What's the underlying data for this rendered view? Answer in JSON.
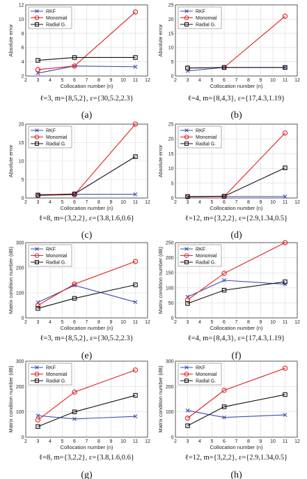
{
  "figure": {
    "colors": {
      "rkf": "#3a4bb0",
      "monomial": "#e02020",
      "radial": "#111111",
      "grid": "#d9d9d9",
      "axis": "#333333"
    }
  },
  "chart_data": [
    {
      "id": "a",
      "type": "line",
      "label": "(a)",
      "caption": "ℓ=3, m={8,5,2}, ε={30,5.2,2.3}",
      "xlabel": "Collocation number (n)",
      "ylabel": "Absolute error",
      "xlim": [
        2,
        12
      ],
      "ylim": [
        2,
        12
      ],
      "xticks": [
        2,
        3,
        4,
        5,
        6,
        7,
        8,
        9,
        10,
        11,
        12
      ],
      "yticks": [
        2,
        4,
        6,
        8,
        10,
        12
      ],
      "grid": true,
      "legend": "top-left",
      "x": [
        3,
        6,
        11
      ],
      "series": [
        {
          "name": "RKF",
          "values": [
            2.4,
            3.4,
            3.3
          ]
        },
        {
          "name": "Monomial",
          "values": [
            2.9,
            3.4,
            11.0
          ]
        },
        {
          "name": "Radial G.",
          "values": [
            4.2,
            4.6,
            4.6
          ]
        }
      ]
    },
    {
      "id": "b",
      "type": "line",
      "label": "(b)",
      "caption": "ℓ=4, m={8,4,3}, ε={17,4.3,1.19}",
      "xlabel": "Collocation number (n)",
      "ylabel": "Absolute error",
      "xlim": [
        2,
        12
      ],
      "ylim": [
        0,
        25
      ],
      "xticks": [
        2,
        3,
        4,
        5,
        6,
        7,
        8,
        9,
        10,
        11,
        12
      ],
      "yticks": [
        0,
        5,
        10,
        15,
        20,
        25
      ],
      "grid": true,
      "legend": "top-left",
      "x": [
        3,
        6,
        11
      ],
      "series": [
        {
          "name": "RKF",
          "values": [
            1.8,
            3.0,
            3.0
          ]
        },
        {
          "name": "Monomial",
          "values": [
            2.8,
            3.0,
            21.0
          ]
        },
        {
          "name": "Radial G.",
          "values": [
            2.8,
            3.0,
            3.0
          ]
        }
      ]
    },
    {
      "id": "c",
      "type": "line",
      "label": "(c)",
      "caption": "ℓ=8, m={3,2,2}, ε={3.8,1.6,0.6}",
      "xlabel": "Collocation number (n)",
      "ylabel": "Absolute error",
      "xlim": [
        2,
        12
      ],
      "ylim": [
        0,
        20
      ],
      "xticks": [
        2,
        3,
        4,
        5,
        6,
        7,
        8,
        9,
        10,
        11,
        12
      ],
      "yticks": [
        0,
        5,
        10,
        15,
        20
      ],
      "grid": true,
      "legend": "top-left",
      "x": [
        3,
        6,
        11
      ],
      "series": [
        {
          "name": "RKF",
          "values": [
            0.9,
            1.0,
            1.0
          ]
        },
        {
          "name": "Monomial",
          "values": [
            0.7,
            0.9,
            20.0
          ]
        },
        {
          "name": "Radial G.",
          "values": [
            0.8,
            1.1,
            11.2
          ]
        }
      ]
    },
    {
      "id": "d",
      "type": "line",
      "label": "(d)",
      "caption": "ℓ=12, m={3,2,2}, ε={2.9,1.34,0.5}",
      "xlabel": "Collocation number (n)",
      "ylabel": "Absolute error",
      "xlim": [
        2,
        12
      ],
      "ylim": [
        0,
        25
      ],
      "xticks": [
        2,
        3,
        4,
        5,
        6,
        7,
        8,
        9,
        10,
        11,
        12
      ],
      "yticks": [
        0,
        5,
        10,
        15,
        20,
        25
      ],
      "grid": true,
      "legend": "top-left",
      "x": [
        3,
        6,
        11
      ],
      "series": [
        {
          "name": "RKF",
          "values": [
            0.4,
            0.5,
            0.5
          ]
        },
        {
          "name": "Monomial",
          "values": [
            0.4,
            0.5,
            22.0
          ]
        },
        {
          "name": "Radial G.",
          "values": [
            0.5,
            0.6,
            10.2
          ]
        }
      ]
    },
    {
      "id": "e",
      "type": "line",
      "label": "(e)",
      "caption": "ℓ=3, m={8,5,2}, ε={30,5.2,2.3}",
      "xlabel": "Collocation number (n)",
      "ylabel": "Matrix condition number (dB)",
      "xlim": [
        2,
        12
      ],
      "ylim": [
        0,
        300
      ],
      "xticks": [
        2,
        3,
        4,
        5,
        6,
        7,
        8,
        9,
        10,
        11,
        12
      ],
      "yticks": [
        0,
        100,
        200,
        300
      ],
      "grid": true,
      "legend": "top-left",
      "x": [
        3,
        6,
        11
      ],
      "series": [
        {
          "name": "RKF",
          "values": [
            62,
            130,
            63
          ]
        },
        {
          "name": "Monomial",
          "values": [
            50,
            135,
            225
          ]
        },
        {
          "name": "Radial G.",
          "values": [
            38,
            78,
            132
          ]
        }
      ]
    },
    {
      "id": "f",
      "type": "line",
      "label": "(f)",
      "caption": "ℓ=4, m={8,4,3}, ε={17,4.3,1.19}",
      "xlabel": "Collocation number (n)",
      "ylabel": "Matrix condition number (dB)",
      "xlim": [
        2,
        12
      ],
      "ylim": [
        0,
        250
      ],
      "xticks": [
        2,
        3,
        4,
        5,
        6,
        7,
        8,
        9,
        10,
        11,
        12
      ],
      "yticks": [
        0,
        50,
        100,
        150,
        200,
        250
      ],
      "grid": true,
      "legend": "top-left",
      "x": [
        3,
        6,
        11
      ],
      "series": [
        {
          "name": "RKF",
          "values": [
            70,
            125,
            112
          ]
        },
        {
          "name": "Monomial",
          "values": [
            60,
            148,
            250
          ]
        },
        {
          "name": "Radial G.",
          "values": [
            48,
            92,
            120
          ]
        }
      ]
    },
    {
      "id": "g",
      "type": "line",
      "label": "(g)",
      "caption": "ℓ=8, m={3,2,2}, ε={3.8,1.6,0.6}",
      "xlabel": "Collocation number (n)",
      "ylabel": "Matrix condition number (dB)",
      "xlim": [
        2,
        12
      ],
      "ylim": [
        0,
        300
      ],
      "xticks": [
        2,
        3,
        4,
        5,
        6,
        7,
        8,
        9,
        10,
        11,
        12
      ],
      "yticks": [
        0,
        100,
        200,
        300
      ],
      "grid": true,
      "legend": "top-left",
      "x": [
        3,
        6,
        11
      ],
      "series": [
        {
          "name": "RKF",
          "values": [
            85,
            72,
            82
          ]
        },
        {
          "name": "Monomial",
          "values": [
            68,
            178,
            265
          ]
        },
        {
          "name": "Radial G.",
          "values": [
            42,
            100,
            165
          ]
        }
      ]
    },
    {
      "id": "h",
      "type": "line",
      "label": "(h)",
      "caption": "ℓ=12, m={3,2,2}, ε={2.9,1.34,0.5}",
      "xlabel": "Collocation number (n)",
      "ylabel": "Matrix condition number (dB)",
      "xlim": [
        2,
        12
      ],
      "ylim": [
        0,
        300
      ],
      "xticks": [
        2,
        3,
        4,
        5,
        6,
        7,
        8,
        9,
        10,
        11,
        12
      ],
      "yticks": [
        0,
        100,
        200,
        300
      ],
      "grid": true,
      "legend": "top-left",
      "x": [
        3,
        6,
        11
      ],
      "series": [
        {
          "name": "RKF",
          "values": [
            105,
            78,
            88
          ]
        },
        {
          "name": "Monomial",
          "values": [
            75,
            185,
            272
          ]
        },
        {
          "name": "Radial G.",
          "values": [
            45,
            120,
            168
          ]
        }
      ]
    }
  ]
}
